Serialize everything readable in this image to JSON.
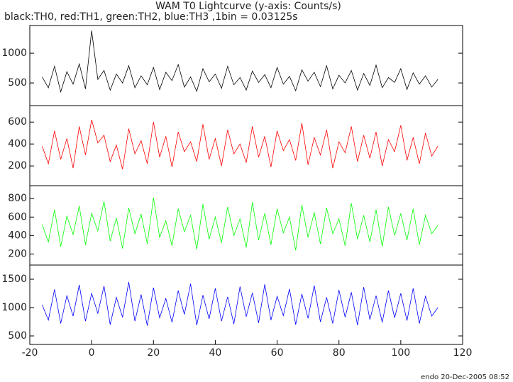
{
  "chart_data": [
    {
      "type": "line",
      "title": "WAM T0 Lightcurve (y-axis: Counts/s)",
      "subtitle": "black:TH0, red:TH1, green:TH2, blue:TH3 ,1bin = 0.03125s",
      "x": [
        -16,
        -14,
        -12,
        -10,
        -8,
        -6,
        -4,
        -2,
        0,
        2,
        4,
        6,
        8,
        10,
        12,
        14,
        16,
        18,
        20,
        22,
        24,
        26,
        28,
        30,
        32,
        34,
        36,
        38,
        40,
        42,
        44,
        46,
        48,
        50,
        52,
        54,
        56,
        58,
        60,
        62,
        64,
        66,
        68,
        70,
        72,
        74,
        76,
        78,
        80,
        82,
        84,
        86,
        88,
        90,
        92,
        94,
        96,
        98,
        100,
        102,
        104,
        106,
        108,
        110,
        112
      ],
      "values": [
        600,
        420,
        780,
        350,
        690,
        480,
        820,
        400,
        1380,
        560,
        710,
        380,
        650,
        500,
        790,
        420,
        620,
        470,
        760,
        390,
        680,
        540,
        810,
        430,
        600,
        360,
        740,
        520,
        650,
        410,
        780,
        470,
        590,
        380,
        700,
        510,
        640,
        420,
        760,
        480,
        610,
        370,
        720,
        530,
        680,
        440,
        790,
        400,
        630,
        500,
        710,
        380,
        660,
        460,
        800,
        420,
        590,
        510,
        740,
        390,
        670,
        480,
        620,
        430,
        560
      ],
      "color": "#000000",
      "xlim": [
        -20,
        120
      ],
      "ylim": [
        120,
        1465
      ],
      "yticks": [
        500,
        1000
      ]
    },
    {
      "type": "line",
      "x": [
        -16,
        -14,
        -12,
        -10,
        -8,
        -6,
        -4,
        -2,
        0,
        2,
        4,
        6,
        8,
        10,
        12,
        14,
        16,
        18,
        20,
        22,
        24,
        26,
        28,
        30,
        32,
        34,
        36,
        38,
        40,
        42,
        44,
        46,
        48,
        50,
        52,
        54,
        56,
        58,
        60,
        62,
        64,
        66,
        68,
        70,
        72,
        74,
        76,
        78,
        80,
        82,
        84,
        86,
        88,
        90,
        92,
        94,
        96,
        98,
        100,
        102,
        104,
        106,
        108,
        110,
        112
      ],
      "values": [
        380,
        220,
        520,
        260,
        450,
        180,
        560,
        300,
        620,
        410,
        480,
        240,
        390,
        170,
        540,
        310,
        430,
        220,
        600,
        280,
        470,
        190,
        510,
        330,
        420,
        240,
        580,
        260,
        450,
        200,
        530,
        310,
        400,
        230,
        560,
        280,
        470,
        190,
        520,
        340,
        440,
        250,
        590,
        210,
        460,
        300,
        530,
        180,
        420,
        320,
        560,
        240,
        480,
        270,
        510,
        200,
        440,
        330,
        570,
        250,
        460,
        220,
        500,
        290,
        380
      ],
      "color": "#ff0000",
      "xlim": [
        -20,
        120
      ],
      "ylim": [
        20,
        750
      ],
      "yticks": [
        200,
        400,
        600
      ]
    },
    {
      "type": "line",
      "x": [
        -16,
        -14,
        -12,
        -10,
        -8,
        -6,
        -4,
        -2,
        0,
        2,
        4,
        6,
        8,
        10,
        12,
        14,
        16,
        18,
        20,
        22,
        24,
        26,
        28,
        30,
        32,
        34,
        36,
        38,
        40,
        42,
        44,
        46,
        48,
        50,
        52,
        54,
        56,
        58,
        60,
        62,
        64,
        66,
        68,
        70,
        72,
        74,
        76,
        78,
        80,
        82,
        84,
        86,
        88,
        90,
        92,
        94,
        96,
        98,
        100,
        102,
        104,
        106,
        108,
        110,
        112
      ],
      "values": [
        520,
        330,
        680,
        280,
        610,
        410,
        720,
        300,
        640,
        450,
        770,
        340,
        590,
        260,
        700,
        420,
        630,
        310,
        810,
        380,
        560,
        290,
        690,
        440,
        620,
        250,
        740,
        360,
        600,
        320,
        710,
        400,
        580,
        270,
        760,
        350,
        640,
        300,
        690,
        430,
        600,
        240,
        730,
        380,
        650,
        310,
        700,
        420,
        580,
        290,
        750,
        360,
        620,
        330,
        680,
        280,
        710,
        400,
        640,
        350,
        690,
        300,
        620,
        420,
        510
      ],
      "color": "#00ff00",
      "xlim": [
        -20,
        120
      ],
      "ylim": [
        80,
        940
      ],
      "yticks": [
        200,
        400,
        600,
        800
      ]
    },
    {
      "type": "line",
      "x": [
        -16,
        -14,
        -12,
        -10,
        -8,
        -6,
        -4,
        -2,
        0,
        2,
        4,
        6,
        8,
        10,
        12,
        14,
        16,
        18,
        20,
        22,
        24,
        26,
        28,
        30,
        32,
        34,
        36,
        38,
        40,
        42,
        44,
        46,
        48,
        50,
        52,
        54,
        56,
        58,
        60,
        62,
        64,
        66,
        68,
        70,
        72,
        74,
        76,
        78,
        80,
        82,
        84,
        86,
        88,
        90,
        92,
        94,
        96,
        98,
        100,
        102,
        104,
        106,
        108,
        110,
        112
      ],
      "values": [
        1050,
        780,
        1320,
        720,
        1210,
        850,
        1400,
        760,
        1250,
        900,
        1380,
        700,
        1180,
        830,
        1450,
        760,
        1230,
        680,
        1350,
        820,
        1160,
        740,
        1300,
        880,
        1420,
        690,
        1220,
        800,
        1340,
        760,
        1190,
        710,
        1370,
        840,
        1260,
        730,
        1410,
        780,
        1200,
        860,
        1330,
        700,
        1240,
        810,
        1390,
        750,
        1180,
        720,
        1310,
        830,
        1270,
        690,
        1360,
        790,
        1210,
        740,
        1300,
        820,
        1250,
        770,
        1340,
        720,
        1200,
        850,
        1000
      ],
      "color": "#0000ff",
      "xlim": [
        -20,
        120
      ],
      "ylim": [
        350,
        1750
      ],
      "yticks": [
        500,
        1000,
        1500
      ],
      "xticks": [
        -20,
        0,
        20,
        40,
        60,
        80,
        100,
        120
      ]
    }
  ],
  "footer": "endo 20-Dec-2005 08:52"
}
